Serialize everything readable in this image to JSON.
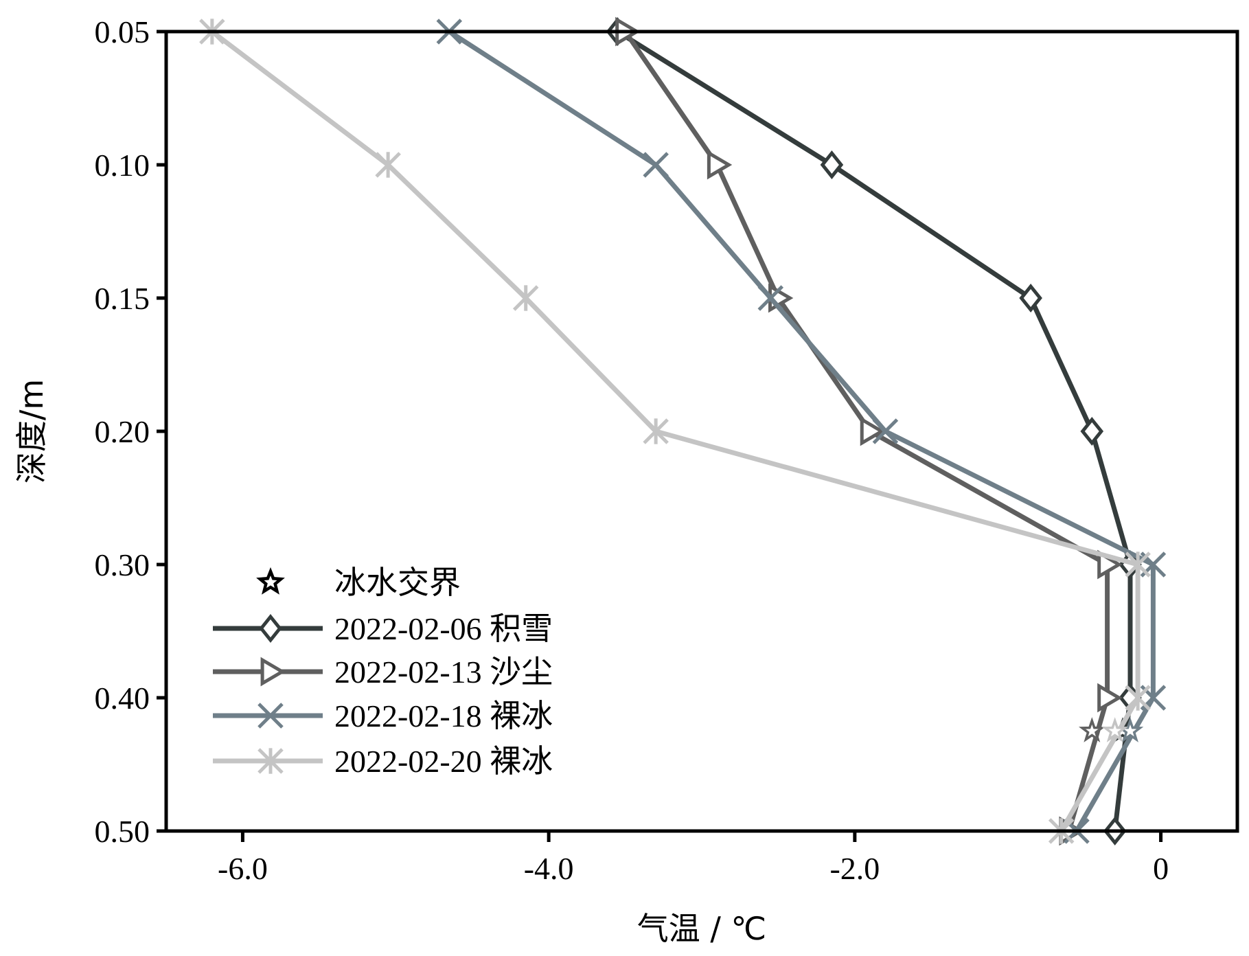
{
  "chart_data": {
    "type": "line",
    "xlabel": "气温 / ℃",
    "ylabel": "深度/m",
    "xlim": [
      -6.5,
      0.5
    ],
    "ylim": [
      0.05,
      0.5
    ],
    "y_reversed": true,
    "y_axis_type": "categorical-positions",
    "y_ticks": [
      "0.05",
      "0.10",
      "0.15",
      "0.20",
      "0.30",
      "0.40",
      "0.50"
    ],
    "y_tick_values": [
      0.05,
      0.1,
      0.15,
      0.2,
      0.3,
      0.4,
      0.5
    ],
    "x_ticks": [
      "-6.0",
      "-4.0",
      "-2.0",
      "0"
    ],
    "x_tick_values": [
      -6.0,
      -4.0,
      -2.0,
      0.0
    ],
    "grid": false,
    "legend_position": "lower-left",
    "legend_star_label": "冰水交界",
    "series": [
      {
        "name": "2022-02-06 积雪",
        "marker": "diamond",
        "color": "#343c3c",
        "points": [
          [
            -3.55,
            0.05
          ],
          [
            -2.15,
            0.1
          ],
          [
            -0.85,
            0.15
          ],
          [
            -0.45,
            0.2
          ],
          [
            -0.2,
            0.3
          ],
          [
            -0.2,
            0.4
          ],
          [
            -0.3,
            0.5
          ]
        ],
        "interface": [
          -0.25,
          0.425
        ]
      },
      {
        "name": "2022-02-13 沙尘",
        "marker": "triangle-right",
        "color": "#5f5f5f",
        "points": [
          [
            -3.5,
            0.05
          ],
          [
            -2.9,
            0.1
          ],
          [
            -2.5,
            0.15
          ],
          [
            -1.9,
            0.2
          ],
          [
            -0.35,
            0.3
          ],
          [
            -0.35,
            0.4
          ],
          [
            -0.6,
            0.5
          ]
        ],
        "interface": [
          -0.45,
          0.425
        ]
      },
      {
        "name": "2022-02-18 裸冰",
        "marker": "x",
        "color": "#6f7f89",
        "points": [
          [
            -4.65,
            0.05
          ],
          [
            -3.3,
            0.1
          ],
          [
            -2.55,
            0.15
          ],
          [
            -1.8,
            0.2
          ],
          [
            -0.05,
            0.3
          ],
          [
            -0.05,
            0.4
          ],
          [
            -0.55,
            0.5
          ]
        ],
        "interface": [
          -0.2,
          0.425
        ]
      },
      {
        "name": "2022-02-20 裸冰",
        "marker": "asterisk",
        "color": "#c4c4c4",
        "points": [
          [
            -6.2,
            0.05
          ],
          [
            -5.05,
            0.1
          ],
          [
            -4.15,
            0.15
          ],
          [
            -3.3,
            0.2
          ],
          [
            -0.15,
            0.3
          ],
          [
            -0.15,
            0.4
          ],
          [
            -0.65,
            0.5
          ]
        ],
        "interface": [
          -0.3,
          0.425
        ]
      }
    ]
  }
}
